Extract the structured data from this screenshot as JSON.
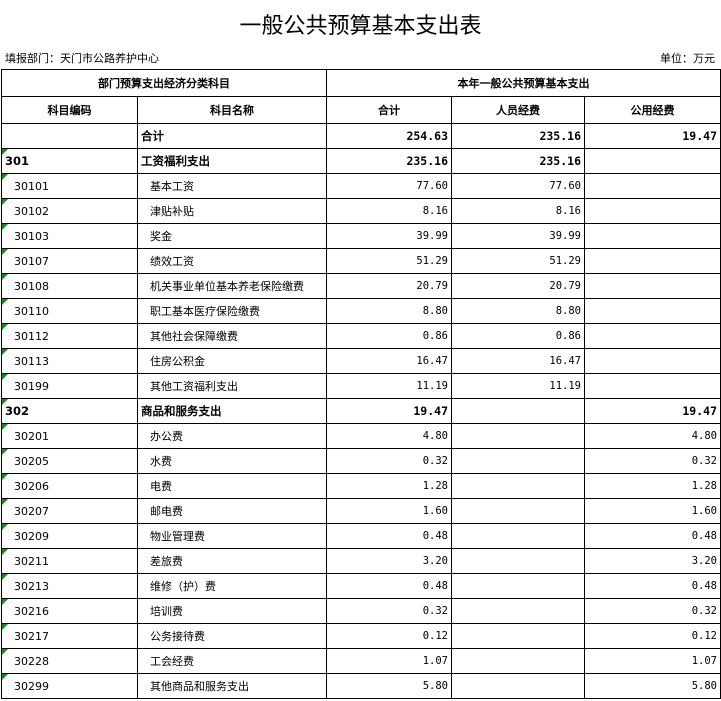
{
  "title": "一般公共预算基本支出表",
  "dept": "填报部门：天门市公路养护中心",
  "unit": "单位：万元",
  "header": {
    "group1": "部门预算支出经济分类科目",
    "group2": "本年一般公共预算基本支出",
    "code": "科目编码",
    "name": "科目名称",
    "total": "合计",
    "personnel": "人员经费",
    "public": "公用经费"
  },
  "rows": [
    {
      "code": "",
      "name": "合计",
      "total": "254.63",
      "personnel": "235.16",
      "public": "19.47",
      "level": 0
    },
    {
      "code": "301",
      "name": "工资福利支出",
      "total": "235.16",
      "personnel": "235.16",
      "public": "",
      "level": 1
    },
    {
      "code": "30101",
      "name": "基本工资",
      "total": "77.60",
      "personnel": "77.60",
      "public": "",
      "level": 2
    },
    {
      "code": "30102",
      "name": "津贴补贴",
      "total": "8.16",
      "personnel": "8.16",
      "public": "",
      "level": 2
    },
    {
      "code": "30103",
      "name": "奖金",
      "total": "39.99",
      "personnel": "39.99",
      "public": "",
      "level": 2
    },
    {
      "code": "30107",
      "name": "绩效工资",
      "total": "51.29",
      "personnel": "51.29",
      "public": "",
      "level": 2
    },
    {
      "code": "30108",
      "name": "机关事业单位基本养老保险缴费",
      "total": "20.79",
      "personnel": "20.79",
      "public": "",
      "level": 2
    },
    {
      "code": "30110",
      "name": "职工基本医疗保险缴费",
      "total": "8.80",
      "personnel": "8.80",
      "public": "",
      "level": 2
    },
    {
      "code": "30112",
      "name": "其他社会保障缴费",
      "total": "0.86",
      "personnel": "0.86",
      "public": "",
      "level": 2
    },
    {
      "code": "30113",
      "name": "住房公积金",
      "total": "16.47",
      "personnel": "16.47",
      "public": "",
      "level": 2
    },
    {
      "code": "30199",
      "name": "其他工资福利支出",
      "total": "11.19",
      "personnel": "11.19",
      "public": "",
      "level": 2
    },
    {
      "code": "302",
      "name": "商品和服务支出",
      "total": "19.47",
      "personnel": "",
      "public": "19.47",
      "level": 1
    },
    {
      "code": "30201",
      "name": "办公费",
      "total": "4.80",
      "personnel": "",
      "public": "4.80",
      "level": 2
    },
    {
      "code": "30205",
      "name": "水费",
      "total": "0.32",
      "personnel": "",
      "public": "0.32",
      "level": 2
    },
    {
      "code": "30206",
      "name": "电费",
      "total": "1.28",
      "personnel": "",
      "public": "1.28",
      "level": 2
    },
    {
      "code": "30207",
      "name": "邮电费",
      "total": "1.60",
      "personnel": "",
      "public": "1.60",
      "level": 2
    },
    {
      "code": "30209",
      "name": "物业管理费",
      "total": "0.48",
      "personnel": "",
      "public": "0.48",
      "level": 2
    },
    {
      "code": "30211",
      "name": "差旅费",
      "total": "3.20",
      "personnel": "",
      "public": "3.20",
      "level": 2
    },
    {
      "code": "30213",
      "name": "维修（护）费",
      "total": "0.48",
      "personnel": "",
      "public": "0.48",
      "level": 2
    },
    {
      "code": "30216",
      "name": "培训费",
      "total": "0.32",
      "personnel": "",
      "public": "0.32",
      "level": 2
    },
    {
      "code": "30217",
      "name": "公务接待费",
      "total": "0.12",
      "personnel": "",
      "public": "0.12",
      "level": 2
    },
    {
      "code": "30228",
      "name": "工会经费",
      "total": "1.07",
      "personnel": "",
      "public": "1.07",
      "level": 2
    },
    {
      "code": "30299",
      "name": "其他商品和服务支出",
      "total": "5.80",
      "personnel": "",
      "public": "5.80",
      "level": 2
    }
  ]
}
